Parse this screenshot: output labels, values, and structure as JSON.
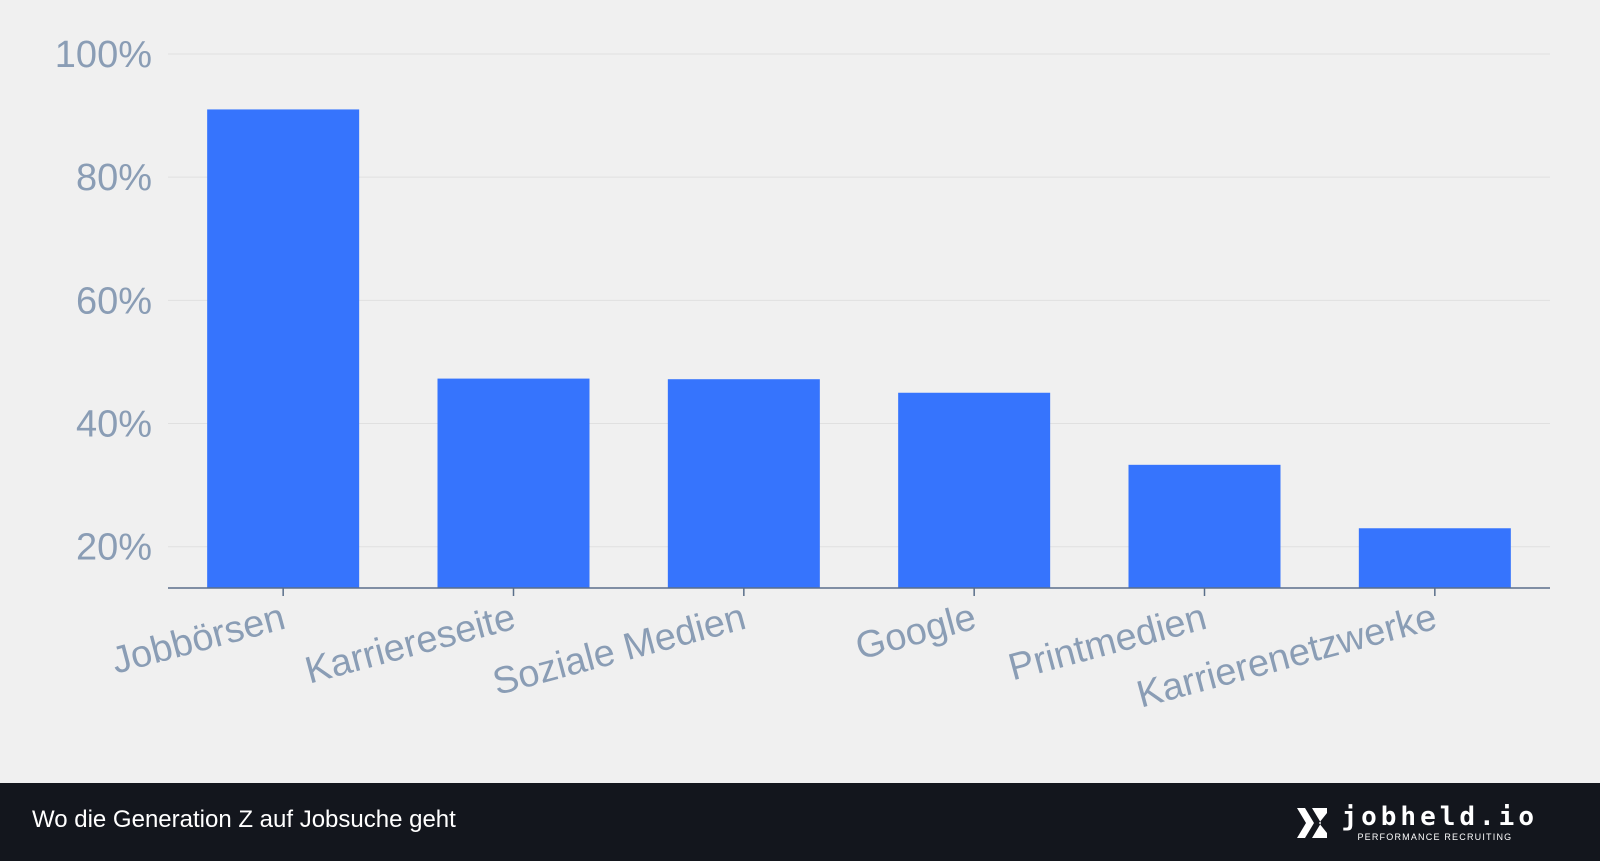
{
  "chart_data": {
    "type": "bar",
    "categories": [
      "Jobbörsen",
      "Karriereseite",
      "Soziale Medien",
      "Google",
      "Printmedien",
      "Karrierenetzwerke"
    ],
    "values": [
      91,
      47.3,
      47.2,
      45,
      33.3,
      23
    ],
    "ylim": [
      13.3,
      100
    ],
    "yticks": [
      20,
      40,
      60,
      80,
      100
    ],
    "ytick_labels": [
      "20%",
      "40%",
      "60%",
      "80%",
      "100%"
    ],
    "bar_color": "#3674fd",
    "grid": true
  },
  "footer": {
    "caption": "Wo die Generation Z auf Jobsuche geht",
    "brand_name": "jobheld.io",
    "brand_tagline": "PERFORMANCE RECRUITING",
    "brand_icon": "jobheld-logo-icon"
  },
  "colors": {
    "background": "#f0f0f0",
    "footer_background": "#13161d",
    "label_color": "#8a9db5",
    "axis_color": "#5a6e8a"
  }
}
